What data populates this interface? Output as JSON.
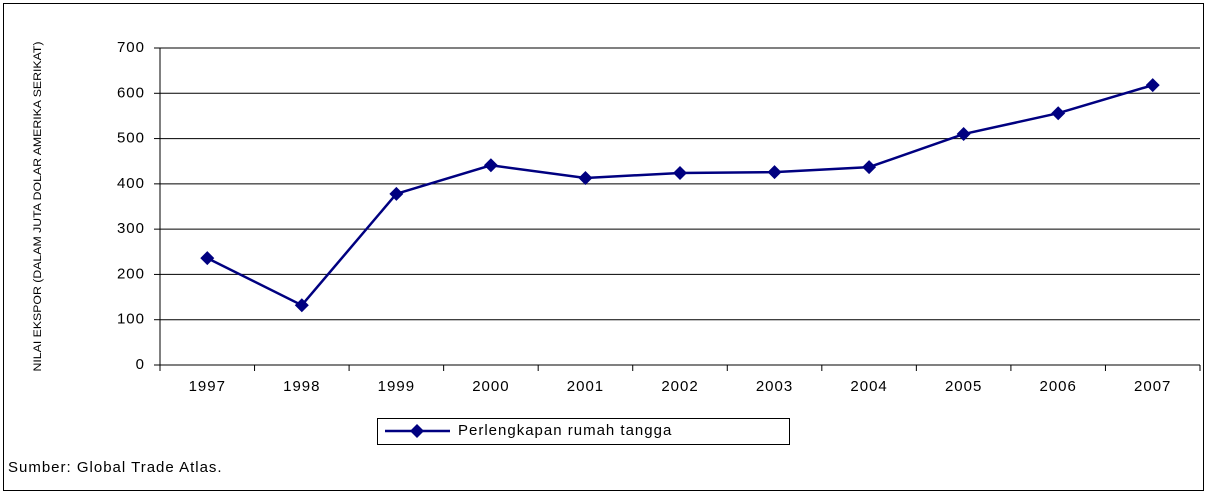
{
  "chart_data": {
    "type": "line",
    "y_label": "NILAI EKSPOR (DALAM JUTA DOLAR AMERIKA SERIKAT)",
    "categories": [
      "1997",
      "1998",
      "1999",
      "2000",
      "2001",
      "2002",
      "2003",
      "2004",
      "2005",
      "2006",
      "2007"
    ],
    "series": [
      {
        "name": "Perlengkapan rumah tangga",
        "color": "#000080",
        "values": [
          236,
          132,
          378,
          441,
          413,
          424,
          426,
          437,
          510,
          556,
          618
        ]
      }
    ],
    "ylim": [
      0,
      700
    ],
    "yticks": [
      0,
      100,
      200,
      300,
      400,
      500,
      600,
      700
    ],
    "grid": true,
    "legend": "bottom",
    "source": "Sumber: Global Trade Atlas."
  }
}
